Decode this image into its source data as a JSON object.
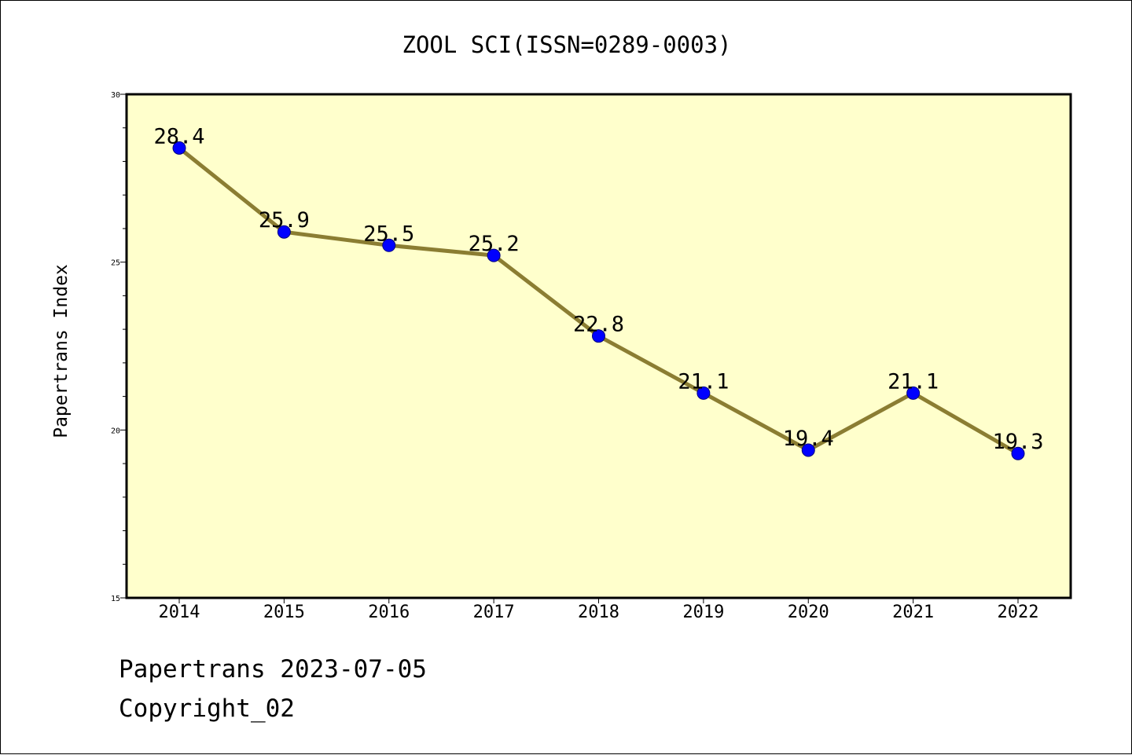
{
  "chart_data": {
    "type": "line",
    "title": "ZOOL SCI(ISSN=0289-0003)",
    "xlabel": "",
    "ylabel": "Papertrans Index",
    "categories": [
      "2014",
      "2015",
      "2016",
      "2017",
      "2018",
      "2019",
      "2020",
      "2021",
      "2022"
    ],
    "series": [
      {
        "values": [
          28.4,
          25.9,
          25.5,
          25.2,
          22.8,
          21.1,
          19.4,
          21.1,
          19.3
        ],
        "value_labels": [
          "28.4",
          "25.9",
          "25.5",
          "25.2",
          "22.8",
          "21.1",
          "19.4",
          "21.1",
          "19.3"
        ]
      }
    ],
    "ylim": [
      15,
      30
    ],
    "y_ticks": [
      15,
      20,
      25,
      30
    ],
    "y_tick_labels": [
      "15",
      "20",
      "25",
      "30"
    ],
    "grid": false,
    "colors": {
      "plot_background": "#ffffcc",
      "line": "#8b7d32",
      "marker": "#0000ff"
    }
  },
  "footer": {
    "line1": "Papertrans 2023-07-05",
    "line2": "Copyright_02"
  }
}
